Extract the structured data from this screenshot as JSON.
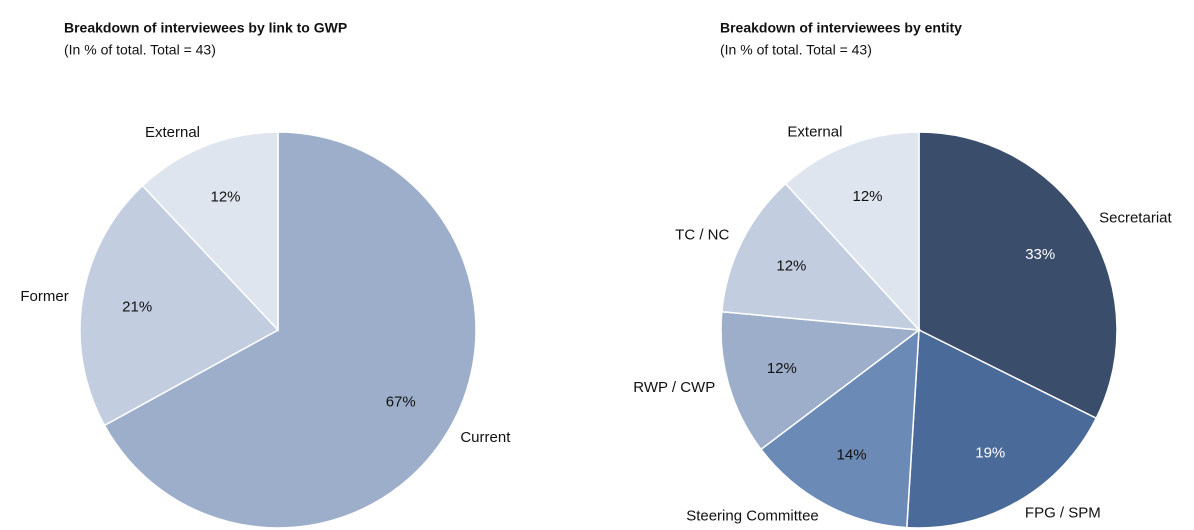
{
  "chart_data": [
    {
      "type": "pie",
      "title": "Breakdown of interviewees by link to GWP",
      "subtitle": "(In % of total. Total = 43)",
      "categories": [
        "Current",
        "Former",
        "External"
      ],
      "values": [
        67,
        21,
        12
      ],
      "value_labels": [
        "67%",
        "21%",
        "12%"
      ],
      "colors": [
        "#9daecb",
        "#c3cde0",
        "#dfe5ef"
      ]
    },
    {
      "type": "pie",
      "title": "Breakdown of interviewees by entity",
      "subtitle": "(In % of total. Total = 43)",
      "categories": [
        "Secretariat",
        "FPG / SPM",
        "Steering Committee",
        "RWP / CWP",
        "TC / NC",
        "External"
      ],
      "values": [
        33,
        19,
        14,
        12,
        12,
        12
      ],
      "value_labels": [
        "33%",
        "19%",
        "14%",
        "12%",
        "12%",
        "12%"
      ],
      "colors": [
        "#3a4d6b",
        "#4a6a99",
        "#6b8ab5",
        "#9daecb",
        "#c3cde0",
        "#dfe5ef"
      ]
    }
  ]
}
